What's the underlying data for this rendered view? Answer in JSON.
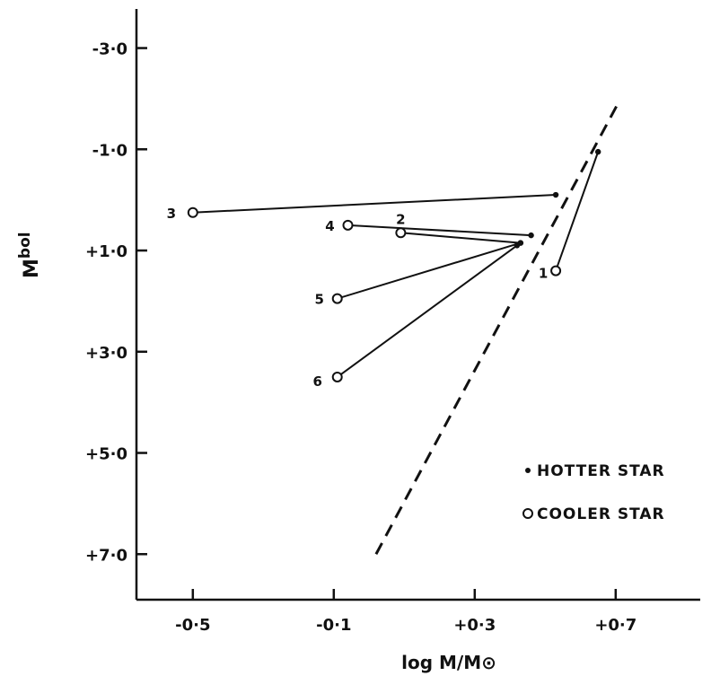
{
  "chart_data": {
    "type": "scatter",
    "title": "",
    "xlabel": "log M/M⊙",
    "ylabel_main": "M",
    "ylabel_sup": "bol",
    "xlim": [
      -0.66,
      0.94
    ],
    "ylim": [
      7.9,
      -3.95
    ],
    "y_inverted": true,
    "grid": false,
    "x_ticks": [
      {
        "value": -0.5,
        "label": "-0·5"
      },
      {
        "value": -0.1,
        "label": "-0·1"
      },
      {
        "value": 0.3,
        "label": "+0·3"
      },
      {
        "value": 0.7,
        "label": "+0·7"
      }
    ],
    "y_ticks": [
      {
        "value": -3.0,
        "label": "-3·0"
      },
      {
        "value": -1.0,
        "label": "-1·0"
      },
      {
        "value": 1.0,
        "label": "+1·0"
      },
      {
        "value": 3.0,
        "label": "+3·0"
      },
      {
        "value": 5.0,
        "label": "+5·0"
      },
      {
        "value": 7.0,
        "label": "+7·0"
      }
    ],
    "reference_line": {
      "style": "dashed",
      "x": [
        0.02,
        0.71
      ],
      "y": [
        7.0,
        -1.95
      ]
    },
    "pairs": [
      {
        "label": "1",
        "hotter": [
          0.65,
          -0.95
        ],
        "cooler": [
          0.53,
          1.4
        ]
      },
      {
        "label": "2",
        "hotter": [
          0.43,
          0.85
        ],
        "cooler": [
          0.09,
          0.65
        ]
      },
      {
        "label": "3",
        "hotter": [
          0.53,
          -0.1
        ],
        "cooler": [
          -0.5,
          0.25
        ]
      },
      {
        "label": "4",
        "hotter": [
          0.46,
          0.7
        ],
        "cooler": [
          -0.06,
          0.5
        ]
      },
      {
        "label": "5",
        "hotter": [
          0.43,
          0.85
        ],
        "cooler": [
          -0.09,
          1.95
        ]
      },
      {
        "label": "6",
        "hotter": [
          0.42,
          0.9
        ],
        "cooler": [
          -0.09,
          3.5
        ]
      }
    ],
    "legend": {
      "placement": "bottom-right",
      "items": [
        {
          "marker": "filled",
          "label": "HOTTER STAR"
        },
        {
          "marker": "open",
          "label": "COOLER STAR"
        }
      ]
    }
  }
}
